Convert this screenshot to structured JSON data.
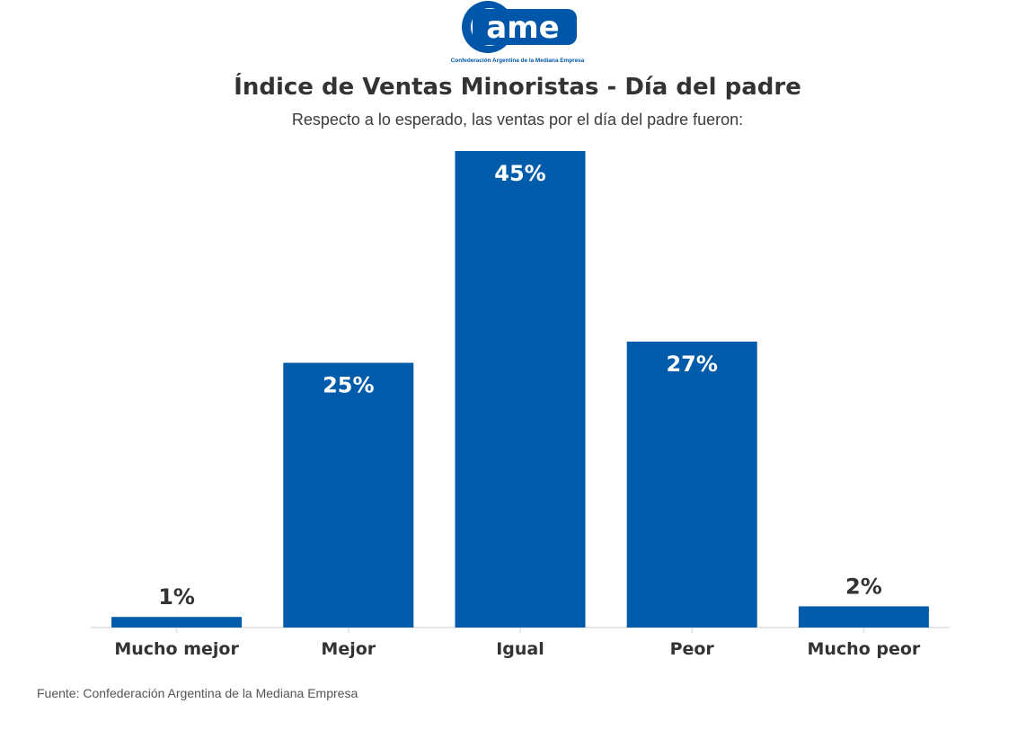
{
  "logo": {
    "text": "ame",
    "tagline": "Confederación Argentina de la Mediana Empresa",
    "color": "#0056a8"
  },
  "header": {
    "title": "Índice de Ventas Minoristas - Día del padre",
    "subtitle": "Respecto a lo esperado, las ventas por el día del padre fueron:"
  },
  "chart_data": {
    "type": "bar",
    "categories": [
      "Mucho mejor",
      "Mejor",
      "Igual",
      "Peor",
      "Mucho peor"
    ],
    "values": [
      1,
      25,
      45,
      27,
      2
    ],
    "data_labels": [
      "1%",
      "25%",
      "45%",
      "27%",
      "2%"
    ],
    "ylim": [
      0,
      45
    ],
    "grid": false,
    "legend": "none",
    "bar_color": "#005baa",
    "xlabel": "",
    "ylabel": ""
  },
  "footer": {
    "source": "Fuente: Confederación Argentina de la Mediana Empresa"
  }
}
